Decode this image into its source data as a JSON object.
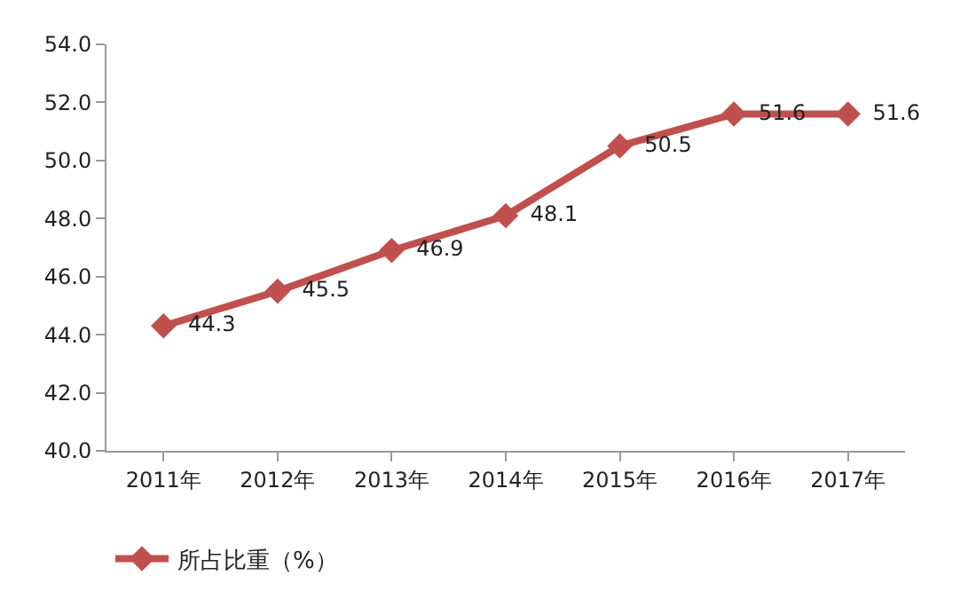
{
  "chart_data": {
    "type": "line",
    "categories": [
      "2011年",
      "2012年",
      "2013年",
      "2014年",
      "2015年",
      "2016年",
      "2017年"
    ],
    "series": [
      {
        "name": "所占比重（%）",
        "color": "#c0504d",
        "values": [
          44.3,
          45.5,
          46.9,
          48.1,
          50.5,
          51.6,
          51.6
        ]
      }
    ],
    "ylim": [
      40,
      54
    ],
    "yticks": [
      {
        "value": 40,
        "label": "40.0"
      },
      {
        "value": 42,
        "label": "42.0"
      },
      {
        "value": 44,
        "label": "44.0"
      },
      {
        "value": 46,
        "label": "46.0"
      },
      {
        "value": 48,
        "label": "48.0"
      },
      {
        "value": 50,
        "label": "50.0"
      },
      {
        "value": 52,
        "label": "52.0"
      },
      {
        "value": 54,
        "label": "54.0"
      }
    ],
    "data_labels": true,
    "marker": "diamond",
    "line_style": "solid",
    "legend": "bottom left"
  }
}
